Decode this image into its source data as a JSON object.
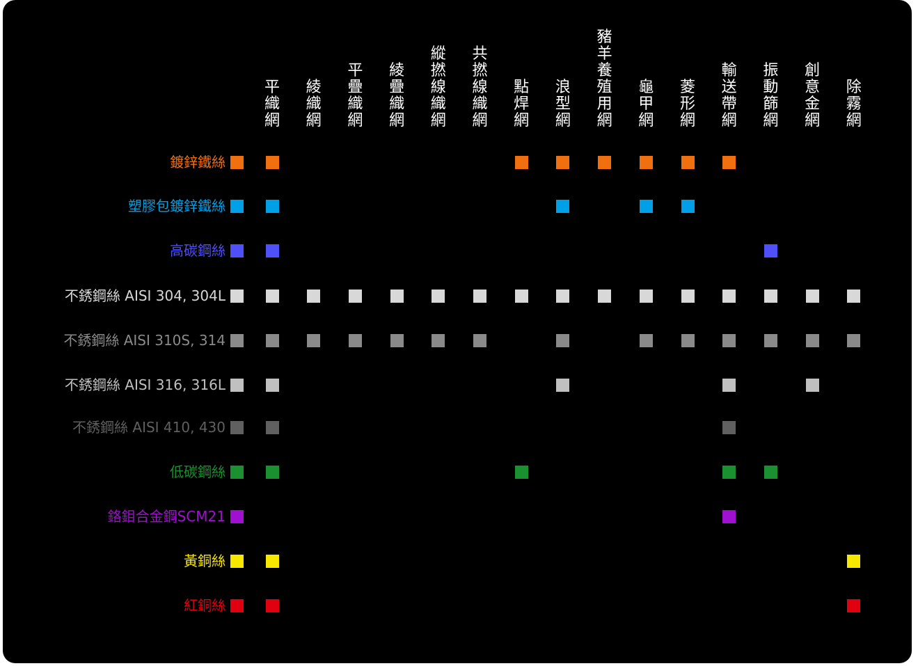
{
  "columns": [
    "平織網",
    "綾織網",
    "平疊織網",
    "綾疊織網",
    "縱撚線織網",
    "共撚線織網",
    "點焊網",
    "浪型網",
    "豬羊養殖用網",
    "龜甲網",
    "菱形網",
    "輸送帶網",
    "振動篩網",
    "創意金網",
    "除霧網"
  ],
  "rows": [
    {
      "label": "鍍鋅鐵絲",
      "color": "#f07010",
      "cells": [
        1,
        0,
        0,
        0,
        0,
        0,
        1,
        1,
        1,
        1,
        1,
        1,
        0,
        0,
        0
      ]
    },
    {
      "label": "塑膠包鍍鋅鐵絲",
      "color": "#00a0e8",
      "cells": [
        1,
        0,
        0,
        0,
        0,
        0,
        0,
        1,
        0,
        1,
        1,
        0,
        0,
        0,
        0
      ]
    },
    {
      "label": "高碳鋼絲",
      "color": "#5050f8",
      "cells": [
        1,
        0,
        0,
        0,
        0,
        0,
        0,
        0,
        0,
        0,
        0,
        0,
        1,
        0,
        0
      ]
    },
    {
      "label": "不銹鋼絲 AISI 304, 304L",
      "color": "#d8d8d8",
      "cells": [
        1,
        1,
        1,
        1,
        1,
        1,
        1,
        1,
        1,
        1,
        1,
        1,
        1,
        1,
        1
      ]
    },
    {
      "label": "不銹鋼絲 AISI 310S, 314",
      "color": "#8a8a8a",
      "cells": [
        1,
        1,
        1,
        1,
        1,
        1,
        0,
        1,
        0,
        1,
        1,
        1,
        1,
        1,
        1
      ]
    },
    {
      "label": "不銹鋼絲 AISI 316, 316L",
      "color": "#c0c0c0",
      "cells": [
        1,
        0,
        0,
        0,
        0,
        0,
        0,
        1,
        0,
        0,
        0,
        1,
        0,
        1,
        0
      ]
    },
    {
      "label": "不銹鋼絲 AISI 410, 430",
      "color": "#606060",
      "cells": [
        1,
        0,
        0,
        0,
        0,
        0,
        0,
        0,
        0,
        0,
        0,
        1,
        0,
        0,
        0
      ]
    },
    {
      "label": "低碳鋼絲",
      "color": "#1a9030",
      "cells": [
        1,
        0,
        0,
        0,
        0,
        0,
        1,
        0,
        0,
        0,
        0,
        1,
        1,
        0,
        0
      ]
    },
    {
      "label": "鉻鉬合金鋼SCM21",
      "color": "#a010d0",
      "cells": [
        0,
        0,
        0,
        0,
        0,
        0,
        0,
        0,
        0,
        0,
        0,
        1,
        0,
        0,
        0
      ]
    },
    {
      "label": "黃銅絲",
      "color": "#f8e800",
      "cells": [
        1,
        0,
        0,
        0,
        0,
        0,
        0,
        0,
        0,
        0,
        0,
        0,
        0,
        0,
        1
      ]
    },
    {
      "label": "紅銅絲",
      "color": "#e00010",
      "cells": [
        1,
        0,
        0,
        0,
        0,
        0,
        0,
        0,
        0,
        0,
        0,
        0,
        0,
        0,
        1
      ]
    }
  ]
}
